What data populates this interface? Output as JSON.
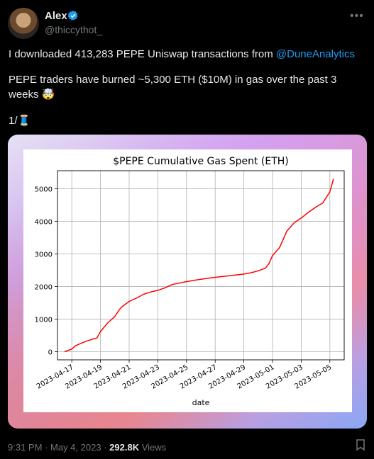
{
  "author": {
    "name": "Alex",
    "handle": "@thiccythot_"
  },
  "tweet": {
    "line1_text": "I downloaded 413,283 PEPE Uniswap transactions from ",
    "line1_mention": "@DuneAnalytics",
    "line2": "PEPE traders have burned ~5,300 ETH ($10M) in gas over the past 3",
    "line3_text": "weeks ",
    "line3_emoji": "🤯",
    "line4_text": "1/",
    "line4_emoji": "🧵"
  },
  "footer": {
    "time": "9:31 PM",
    "sep": "·",
    "date": "May 4, 2023",
    "views_count": "292.8K",
    "views_label": "Views"
  },
  "icons": {
    "verified": "verified-badge-icon",
    "more": "more-options-icon",
    "share": "bookmark-icon"
  },
  "colors": {
    "accent": "#1d9bf0",
    "series": "#ff0000"
  },
  "chart_data": {
    "type": "line",
    "title": "$PEPE Cumulative Gas Spent (ETH)",
    "xlabel": "date",
    "ylabel": "",
    "grid": true,
    "xlim": [
      "2023-04-16",
      "2023-05-06"
    ],
    "ylim": [
      -250,
      5550
    ],
    "yticks": [
      0,
      1000,
      2000,
      3000,
      4000,
      5000
    ],
    "xticks": [
      "2023-04-17",
      "2023-04-19",
      "2023-04-21",
      "2023-04-23",
      "2023-04-25",
      "2023-04-27",
      "2023-04-29",
      "2023-05-01",
      "2023-05-03",
      "2023-05-05"
    ],
    "series": [
      {
        "color": "#ff0000",
        "x": [
          "2023-04-16 12:00",
          "2023-04-17 00:00",
          "2023-04-17 06:00",
          "2023-04-17 12:00",
          "2023-04-18 00:00",
          "2023-04-18 12:00",
          "2023-04-18 18:00",
          "2023-04-19 00:00",
          "2023-04-19 12:00",
          "2023-04-20 00:00",
          "2023-04-20 08:00",
          "2023-04-20 12:00",
          "2023-04-21 00:00",
          "2023-04-21 12:00",
          "2023-04-22 00:00",
          "2023-04-22 12:00",
          "2023-04-23 00:00",
          "2023-04-23 12:00",
          "2023-04-24 00:00",
          "2023-04-25 00:00",
          "2023-04-26 00:00",
          "2023-04-27 00:00",
          "2023-04-28 00:00",
          "2023-04-29 00:00",
          "2023-04-29 12:00",
          "2023-04-30 00:00",
          "2023-04-30 12:00",
          "2023-04-30 18:00",
          "2023-05-01 00:00",
          "2023-05-01 12:00",
          "2023-05-02 00:00",
          "2023-05-02 12:00",
          "2023-05-03 00:00",
          "2023-05-03 12:00",
          "2023-05-04 00:00",
          "2023-05-04 12:00",
          "2023-05-05 00:00",
          "2023-05-05 06:00"
        ],
        "y": [
          0,
          80,
          180,
          230,
          320,
          390,
          420,
          620,
          880,
          1080,
          1300,
          1380,
          1540,
          1640,
          1760,
          1830,
          1880,
          1960,
          2060,
          2150,
          2220,
          2280,
          2330,
          2380,
          2420,
          2480,
          2560,
          2700,
          2950,
          3200,
          3700,
          3950,
          4100,
          4270,
          4430,
          4560,
          4900,
          5300
        ]
      }
    ]
  }
}
